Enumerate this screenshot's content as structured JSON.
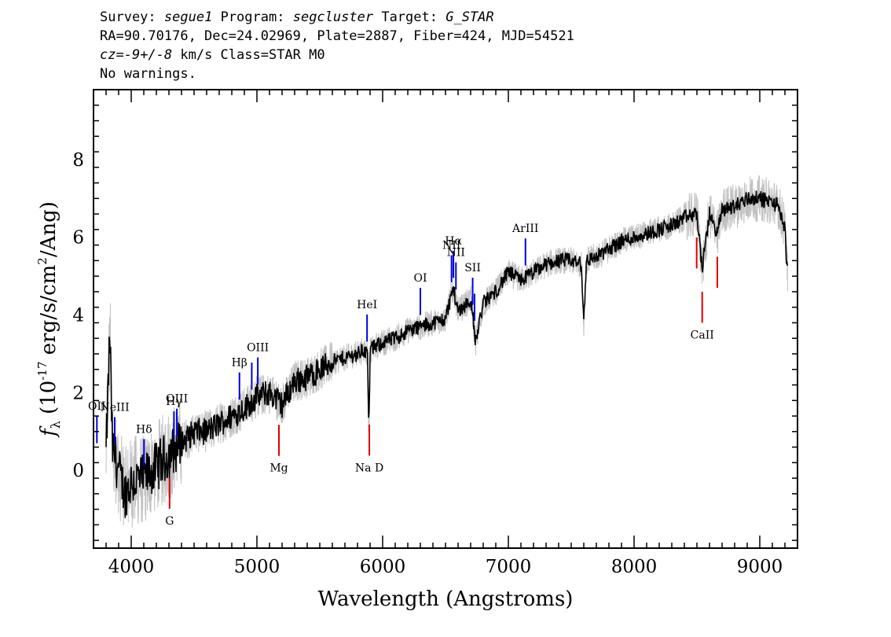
{
  "header": {
    "survey_label": "Survey:",
    "survey": "segue1",
    "program_label": "Program:",
    "program": "segcluster",
    "target_label": "Target:",
    "target": "G_STAR",
    "line2": "RA=90.70176, Dec=24.02969, Plate=2887, Fiber=424, MJD=54521",
    "cz_label": "cz=",
    "cz_value": "-9+/-8",
    "cz_rest": " km/s Class=STAR M0",
    "line4": "No warnings."
  },
  "colors": {
    "flux": "#000000",
    "error_band": "#c0c0c0",
    "emission": "#0000dd",
    "absorption": "#dd0000"
  },
  "chart_data": {
    "type": "line",
    "xlabel": "Wavelength (Angstroms)",
    "ylabel": "f_λ (10^-17 erg/s/cm^2/Ang)",
    "xlim": [
      3700,
      9300
    ],
    "ylim": [
      -2,
      9.8
    ],
    "x_ticks": [
      4000,
      5000,
      6000,
      7000,
      8000,
      9000
    ],
    "y_ticks": [
      0,
      2,
      4,
      6,
      8
    ],
    "grid": false,
    "series": [
      {
        "role": "flux",
        "x": [
          3800,
          3830,
          3850,
          3900,
          3950,
          4000,
          4100,
          4200,
          4300,
          4400,
          4500,
          4600,
          4700,
          4800,
          4900,
          5000,
          5100,
          5200,
          5300,
          5400,
          5500,
          5600,
          5700,
          5800,
          5850,
          5880,
          5890,
          5900,
          5950,
          6000,
          6100,
          6200,
          6300,
          6400,
          6500,
          6560,
          6600,
          6700,
          6740,
          6800,
          6900,
          7000,
          7100,
          7200,
          7300,
          7400,
          7500,
          7580,
          7600,
          7620,
          7700,
          7800,
          7900,
          8000,
          8100,
          8200,
          8300,
          8400,
          8500,
          8542,
          8600,
          8662,
          8700,
          8800,
          8900,
          9000,
          9100,
          9150,
          9200,
          9220
        ],
        "y": [
          0.4,
          3.6,
          0.6,
          0.0,
          -0.6,
          -0.3,
          -0.2,
          0.1,
          0.4,
          0.7,
          1.0,
          1.0,
          1.2,
          1.4,
          1.6,
          1.9,
          2.0,
          1.7,
          2.3,
          2.4,
          2.6,
          2.8,
          2.9,
          3.0,
          3.1,
          3.0,
          0.9,
          3.1,
          3.2,
          3.3,
          3.4,
          3.6,
          3.7,
          3.8,
          3.9,
          4.7,
          4.1,
          4.4,
          3.3,
          4.3,
          4.6,
          5.1,
          4.9,
          5.1,
          5.3,
          5.4,
          5.4,
          5.3,
          3.8,
          5.4,
          5.5,
          5.7,
          5.9,
          6.0,
          6.1,
          6.2,
          6.3,
          6.5,
          6.6,
          5.2,
          6.6,
          6.1,
          6.7,
          6.8,
          7.0,
          7.0,
          6.9,
          6.8,
          6.2,
          5.1
        ]
      }
    ],
    "lines": [
      {
        "name": "OII",
        "label": "OII",
        "x": 3727,
        "type": "emission"
      },
      {
        "name": "NeIII",
        "label": "NeIII",
        "x": 3869,
        "type": "emission"
      },
      {
        "name": "Hdelta",
        "label": "Hδ",
        "x": 4102,
        "type": "emission"
      },
      {
        "name": "Hgamma",
        "label": "Hγ",
        "x": 4340,
        "type": "emission"
      },
      {
        "name": "OIII-4363",
        "label": "OIII",
        "x": 4363,
        "type": "emission"
      },
      {
        "name": "Hbeta",
        "label": "Hβ",
        "x": 4861,
        "type": "emission"
      },
      {
        "name": "OIII-4959",
        "label": "",
        "x": 4959,
        "type": "emission"
      },
      {
        "name": "OIII-5007",
        "label": "OIII",
        "x": 5007,
        "type": "emission"
      },
      {
        "name": "HeI",
        "label": "HeI",
        "x": 5876,
        "type": "emission"
      },
      {
        "name": "OI",
        "label": "OI",
        "x": 6300,
        "type": "emission"
      },
      {
        "name": "NII-6548",
        "label": "NII",
        "x": 6548,
        "type": "emission"
      },
      {
        "name": "Halpha",
        "label": "Hα",
        "x": 6563,
        "type": "emission"
      },
      {
        "name": "NII-6583",
        "label": "NII",
        "x": 6583,
        "type": "emission"
      },
      {
        "name": "SII-6716",
        "label": "SII",
        "x": 6716,
        "type": "emission"
      },
      {
        "name": "SII-6731",
        "label": "",
        "x": 6731,
        "type": "emission"
      },
      {
        "name": "ArIII",
        "label": "ArIII",
        "x": 7136,
        "type": "emission"
      },
      {
        "name": "G",
        "label": "G",
        "x": 4305,
        "type": "absorption"
      },
      {
        "name": "Mg",
        "label": "Mg",
        "x": 5175,
        "type": "absorption"
      },
      {
        "name": "NaD",
        "label": "Na D",
        "x": 5894,
        "type": "absorption"
      },
      {
        "name": "CaII-8498",
        "label": "",
        "x": 8498,
        "type": "absorption"
      },
      {
        "name": "CaII-8542",
        "label": "CaII",
        "x": 8542,
        "type": "absorption"
      },
      {
        "name": "CaII-8662",
        "label": "",
        "x": 8662,
        "type": "absorption"
      }
    ]
  }
}
